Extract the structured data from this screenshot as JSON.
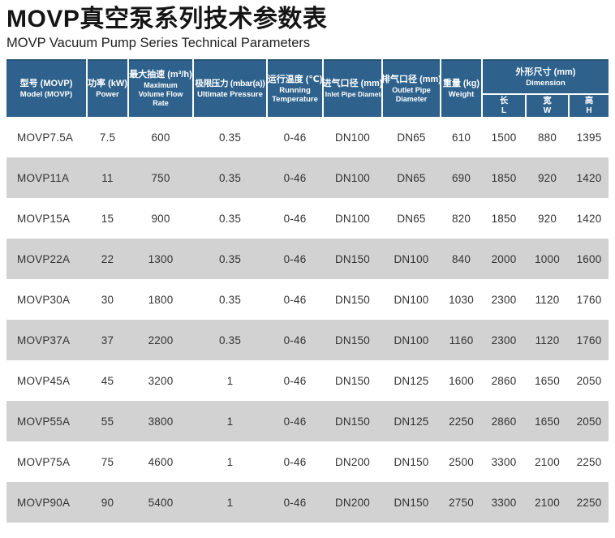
{
  "page": {
    "title": "MOVP真空泵系列技术参数表",
    "subtitle": "MOVP Vacuum Pump Series Technical Parameters"
  },
  "colors": {
    "header_bg": "#2e628c",
    "row_alt_bg": "#d2d2d2",
    "row_bg": "#ffffff",
    "body_text": "#333333"
  },
  "table": {
    "columns": [
      {
        "zh": "型号 (MOVP)",
        "en": "Model (MOVP)"
      },
      {
        "zh": "功率 (kW)",
        "en": "Power"
      },
      {
        "zh": "最大抽速 (m³/h)",
        "en": "Maximum Volume Flow Rate"
      },
      {
        "zh": "极限压力 (mbar(a))",
        "en": "Ultimate Pressure"
      },
      {
        "zh": "运行温度 (℃)",
        "en": "Running Temperature"
      },
      {
        "zh": "进气口径 (mm)",
        "en": "Inlet Pipe Diameter"
      },
      {
        "zh": "排气口径 (mm)",
        "en": "Outlet Pipe Diameter"
      },
      {
        "zh": "重量 (kg)",
        "en": "Weight"
      }
    ],
    "dimension_group": {
      "zh": "外形尺寸 (mm)",
      "en": "Dimension",
      "sub": [
        {
          "zh": "长",
          "en": "L"
        },
        {
          "zh": "宽",
          "en": "W"
        },
        {
          "zh": "高",
          "en": "H"
        }
      ]
    },
    "rows": [
      [
        "MOVP7.5A",
        "7.5",
        "600",
        "0.35",
        "0-46",
        "DN100",
        "DN65",
        "610",
        "1500",
        "880",
        "1395"
      ],
      [
        "MOVP11A",
        "11",
        "750",
        "0.35",
        "0-46",
        "DN100",
        "DN65",
        "690",
        "1850",
        "920",
        "1420"
      ],
      [
        "MOVP15A",
        "15",
        "900",
        "0.35",
        "0-46",
        "DN100",
        "DN65",
        "820",
        "1850",
        "920",
        "1420"
      ],
      [
        "MOVP22A",
        "22",
        "1300",
        "0.35",
        "0-46",
        "DN150",
        "DN100",
        "840",
        "2000",
        "1000",
        "1600"
      ],
      [
        "MOVP30A",
        "30",
        "1800",
        "0.35",
        "0-46",
        "DN150",
        "DN100",
        "1030",
        "2300",
        "1120",
        "1760"
      ],
      [
        "MOVP37A",
        "37",
        "2200",
        "0.35",
        "0-46",
        "DN150",
        "DN100",
        "1160",
        "2300",
        "1120",
        "1760"
      ],
      [
        "MOVP45A",
        "45",
        "3200",
        "1",
        "0-46",
        "DN150",
        "DN125",
        "1600",
        "2860",
        "1650",
        "2050"
      ],
      [
        "MOVP55A",
        "55",
        "3800",
        "1",
        "0-46",
        "DN150",
        "DN125",
        "2250",
        "2860",
        "1650",
        "2050"
      ],
      [
        "MOVP75A",
        "75",
        "4600",
        "1",
        "0-46",
        "DN200",
        "DN150",
        "2500",
        "3300",
        "2100",
        "2250"
      ],
      [
        "MOVP90A",
        "90",
        "5400",
        "1",
        "0-46",
        "DN200",
        "DN150",
        "2750",
        "3300",
        "2100",
        "2250"
      ]
    ]
  }
}
